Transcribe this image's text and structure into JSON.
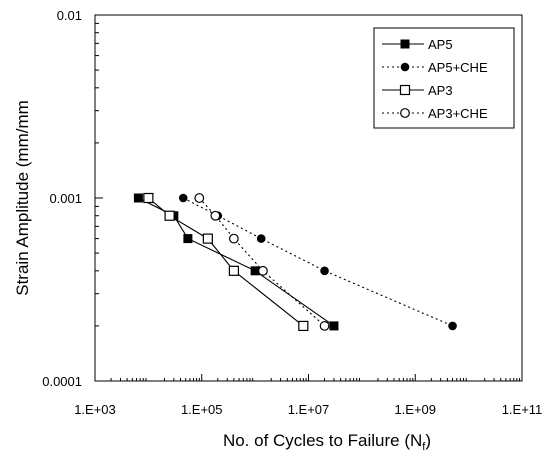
{
  "chart_data": {
    "type": "line",
    "title": "",
    "xlabel": "No. of Cycles to Failure (N",
    "xlabel_sub": "f",
    "xlabel_close": ")",
    "ylabel": "Strain Amplitude (mm/mm",
    "x_scale": "log",
    "y_scale": "log",
    "xlim": [
      1000,
      100000000000
    ],
    "ylim": [
      0.0001,
      0.01
    ],
    "x_ticks": [
      {
        "value": 1000,
        "label": "1.E+03"
      },
      {
        "value": 100000,
        "label": "1.E+05"
      },
      {
        "value": 10000000,
        "label": "1.E+07"
      },
      {
        "value": 1000000000,
        "label": "1.E+09"
      },
      {
        "value": 100000000000,
        "label": "1.E+11"
      }
    ],
    "y_ticks": [
      {
        "value": 0.01,
        "label": "0.01"
      },
      {
        "value": 0.001,
        "label": "0.001"
      },
      {
        "value": 0.0001,
        "label": "0.0001"
      }
    ],
    "grid": false,
    "legend_position": "top-right",
    "series": [
      {
        "name": "AP5",
        "line": "solid",
        "marker": "square-filled",
        "points": [
          [
            6500,
            0.001
          ],
          [
            30000,
            0.0008
          ],
          [
            55000,
            0.0006
          ],
          [
            1000000,
            0.0004
          ],
          [
            30000000,
            0.0002
          ]
        ]
      },
      {
        "name": "AP5+CHE",
        "line": "dotted",
        "marker": "circle-filled",
        "points": [
          [
            45000,
            0.001
          ],
          [
            200000,
            0.0008
          ],
          [
            1300000,
            0.0006
          ],
          [
            20000000,
            0.0004
          ],
          [
            5000000000,
            0.0002
          ]
        ]
      },
      {
        "name": "AP3",
        "line": "solid",
        "marker": "square-open",
        "points": [
          [
            10000,
            0.001
          ],
          [
            25000,
            0.0008
          ],
          [
            130000,
            0.0006
          ],
          [
            400000,
            0.0004
          ],
          [
            8000000,
            0.0002
          ]
        ]
      },
      {
        "name": "AP3+CHE",
        "line": "dotted",
        "marker": "circle-open",
        "points": [
          [
            90000,
            0.001
          ],
          [
            180000,
            0.0008
          ],
          [
            400000,
            0.0006
          ],
          [
            1400000,
            0.0004
          ],
          [
            20000000,
            0.0002
          ]
        ]
      }
    ]
  }
}
